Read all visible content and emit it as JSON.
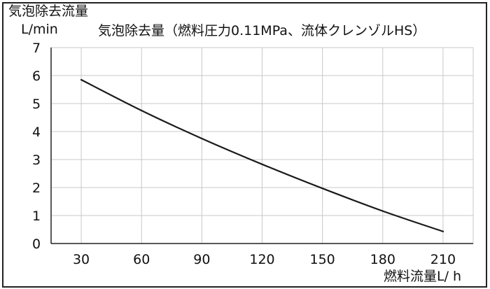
{
  "chart_data": {
    "type": "line",
    "title": "気泡除去量（燃料圧力0.11MPa、流体クレンゾルHS）",
    "ylabel": "気泡除去流量",
    "yunit": "L/min",
    "xlabel": "燃料流量L/ h",
    "xticks": [
      "30",
      "60",
      "90",
      "120",
      "150",
      "180",
      "210"
    ],
    "yticks": [
      "0",
      "1",
      "2",
      "3",
      "4",
      "5",
      "6",
      "7"
    ],
    "xlim": [
      15,
      225
    ],
    "ylim": [
      0,
      7
    ],
    "grid": true,
    "series": [
      {
        "color": "#1a1a1a",
        "x": [
          30,
          60,
          90,
          120,
          150,
          180,
          210
        ],
        "y": [
          5.85,
          4.75,
          3.75,
          2.83,
          1.97,
          1.16,
          0.43
        ]
      }
    ]
  },
  "colors": {
    "grid": "#c8c8c8",
    "axis": "#222222",
    "line": "#1a1a1a"
  }
}
